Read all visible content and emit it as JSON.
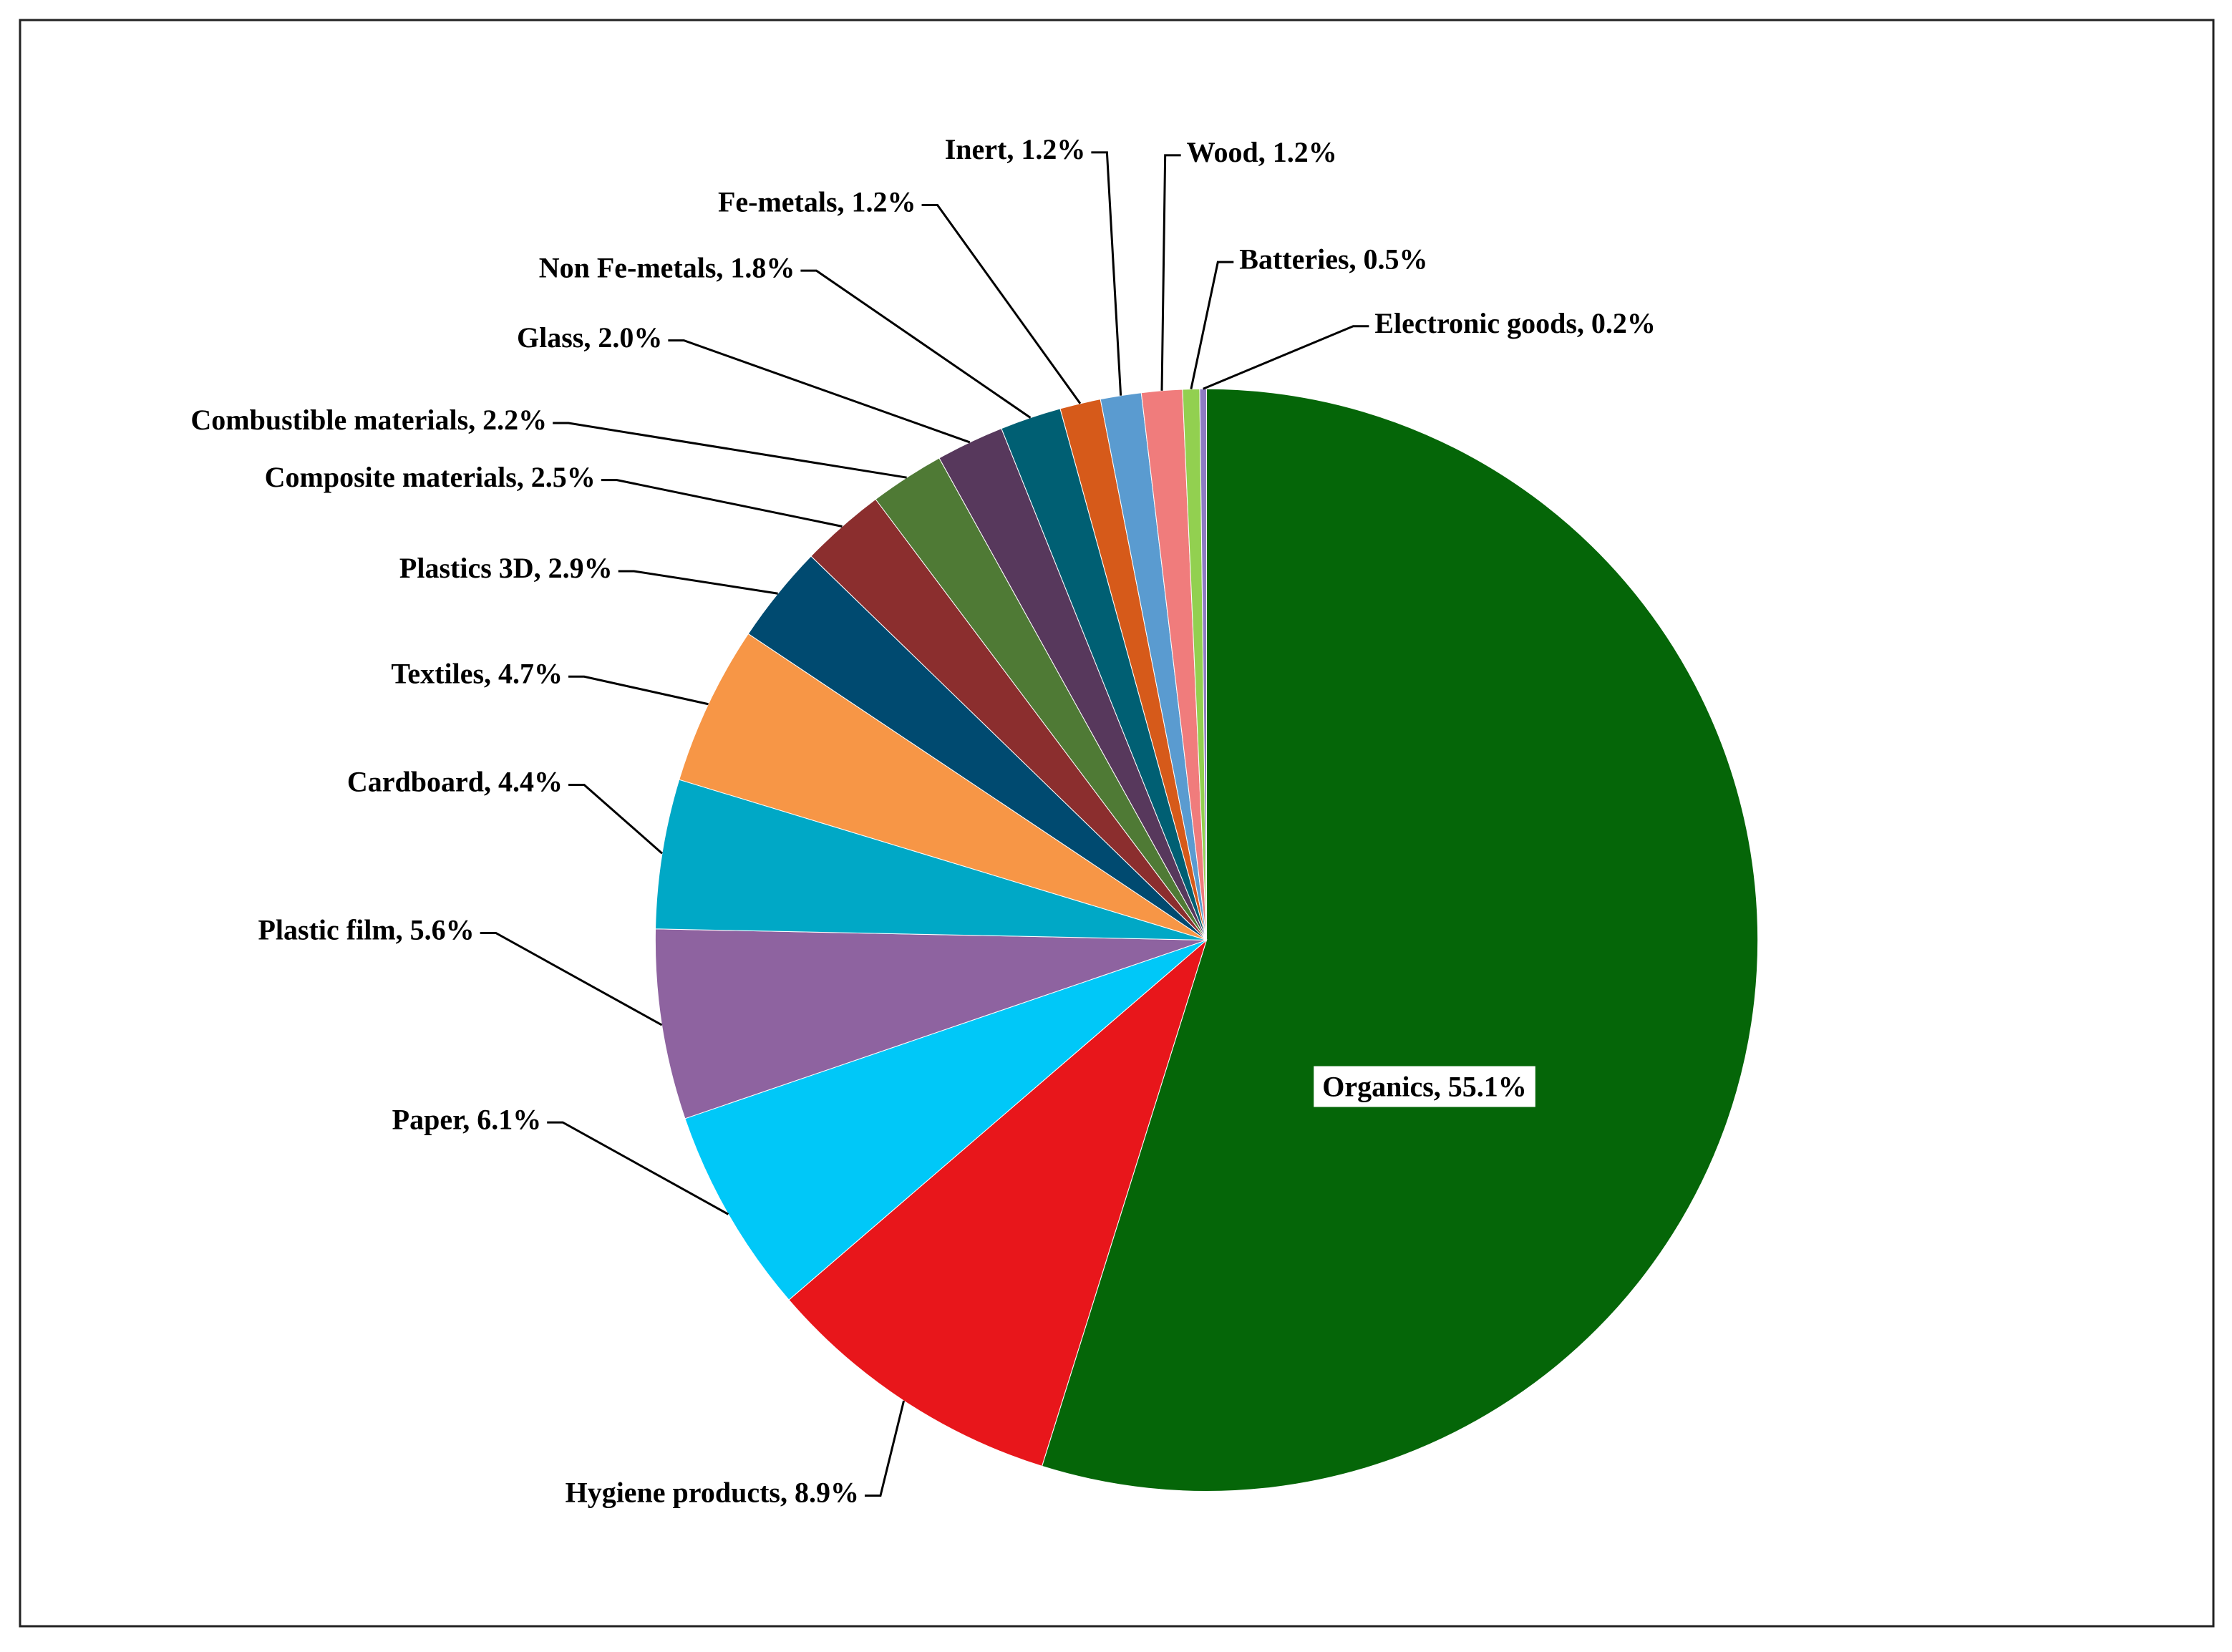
{
  "chart_data": {
    "type": "pie",
    "values": [
      55.1,
      8.9,
      6.1,
      5.6,
      4.4,
      4.7,
      2.9,
      2.5,
      2.2,
      2.0,
      1.8,
      1.2,
      1.2,
      1.2,
      0.5,
      0.2
    ],
    "value_labels": [
      "Organics, 55.1%",
      "Hygiene products, 8.9%",
      "Paper, 6.1%",
      "Plastic film,  5.6%",
      "Cardboard,  4.4%",
      "Textiles,  4.7%",
      "Plastics 3D, 2.9%",
      "Composite materials,  2.5%",
      "Combustible  materials, 2.2%",
      "Glass, 2.0%",
      "Non Fe-metals, 1.8%",
      "Fe-metals, 1.2%",
      "Inert,  1.2%",
      "Wood, 1.2%",
      "Batteries, 0.5%",
      "Electronic goods, 0.2%"
    ],
    "colors": [
      "#056608",
      "#e8161b",
      "#00c8f8",
      "#8e63a0",
      "#00a8c6",
      "#f79646",
      "#004a70",
      "#8b2e2e",
      "#4f7a35",
      "#57385c",
      "#005f73",
      "#d65a1a",
      "#5a9bd0",
      "#f07c7c",
      "#92d050",
      "#8e7cc3"
    ]
  }
}
